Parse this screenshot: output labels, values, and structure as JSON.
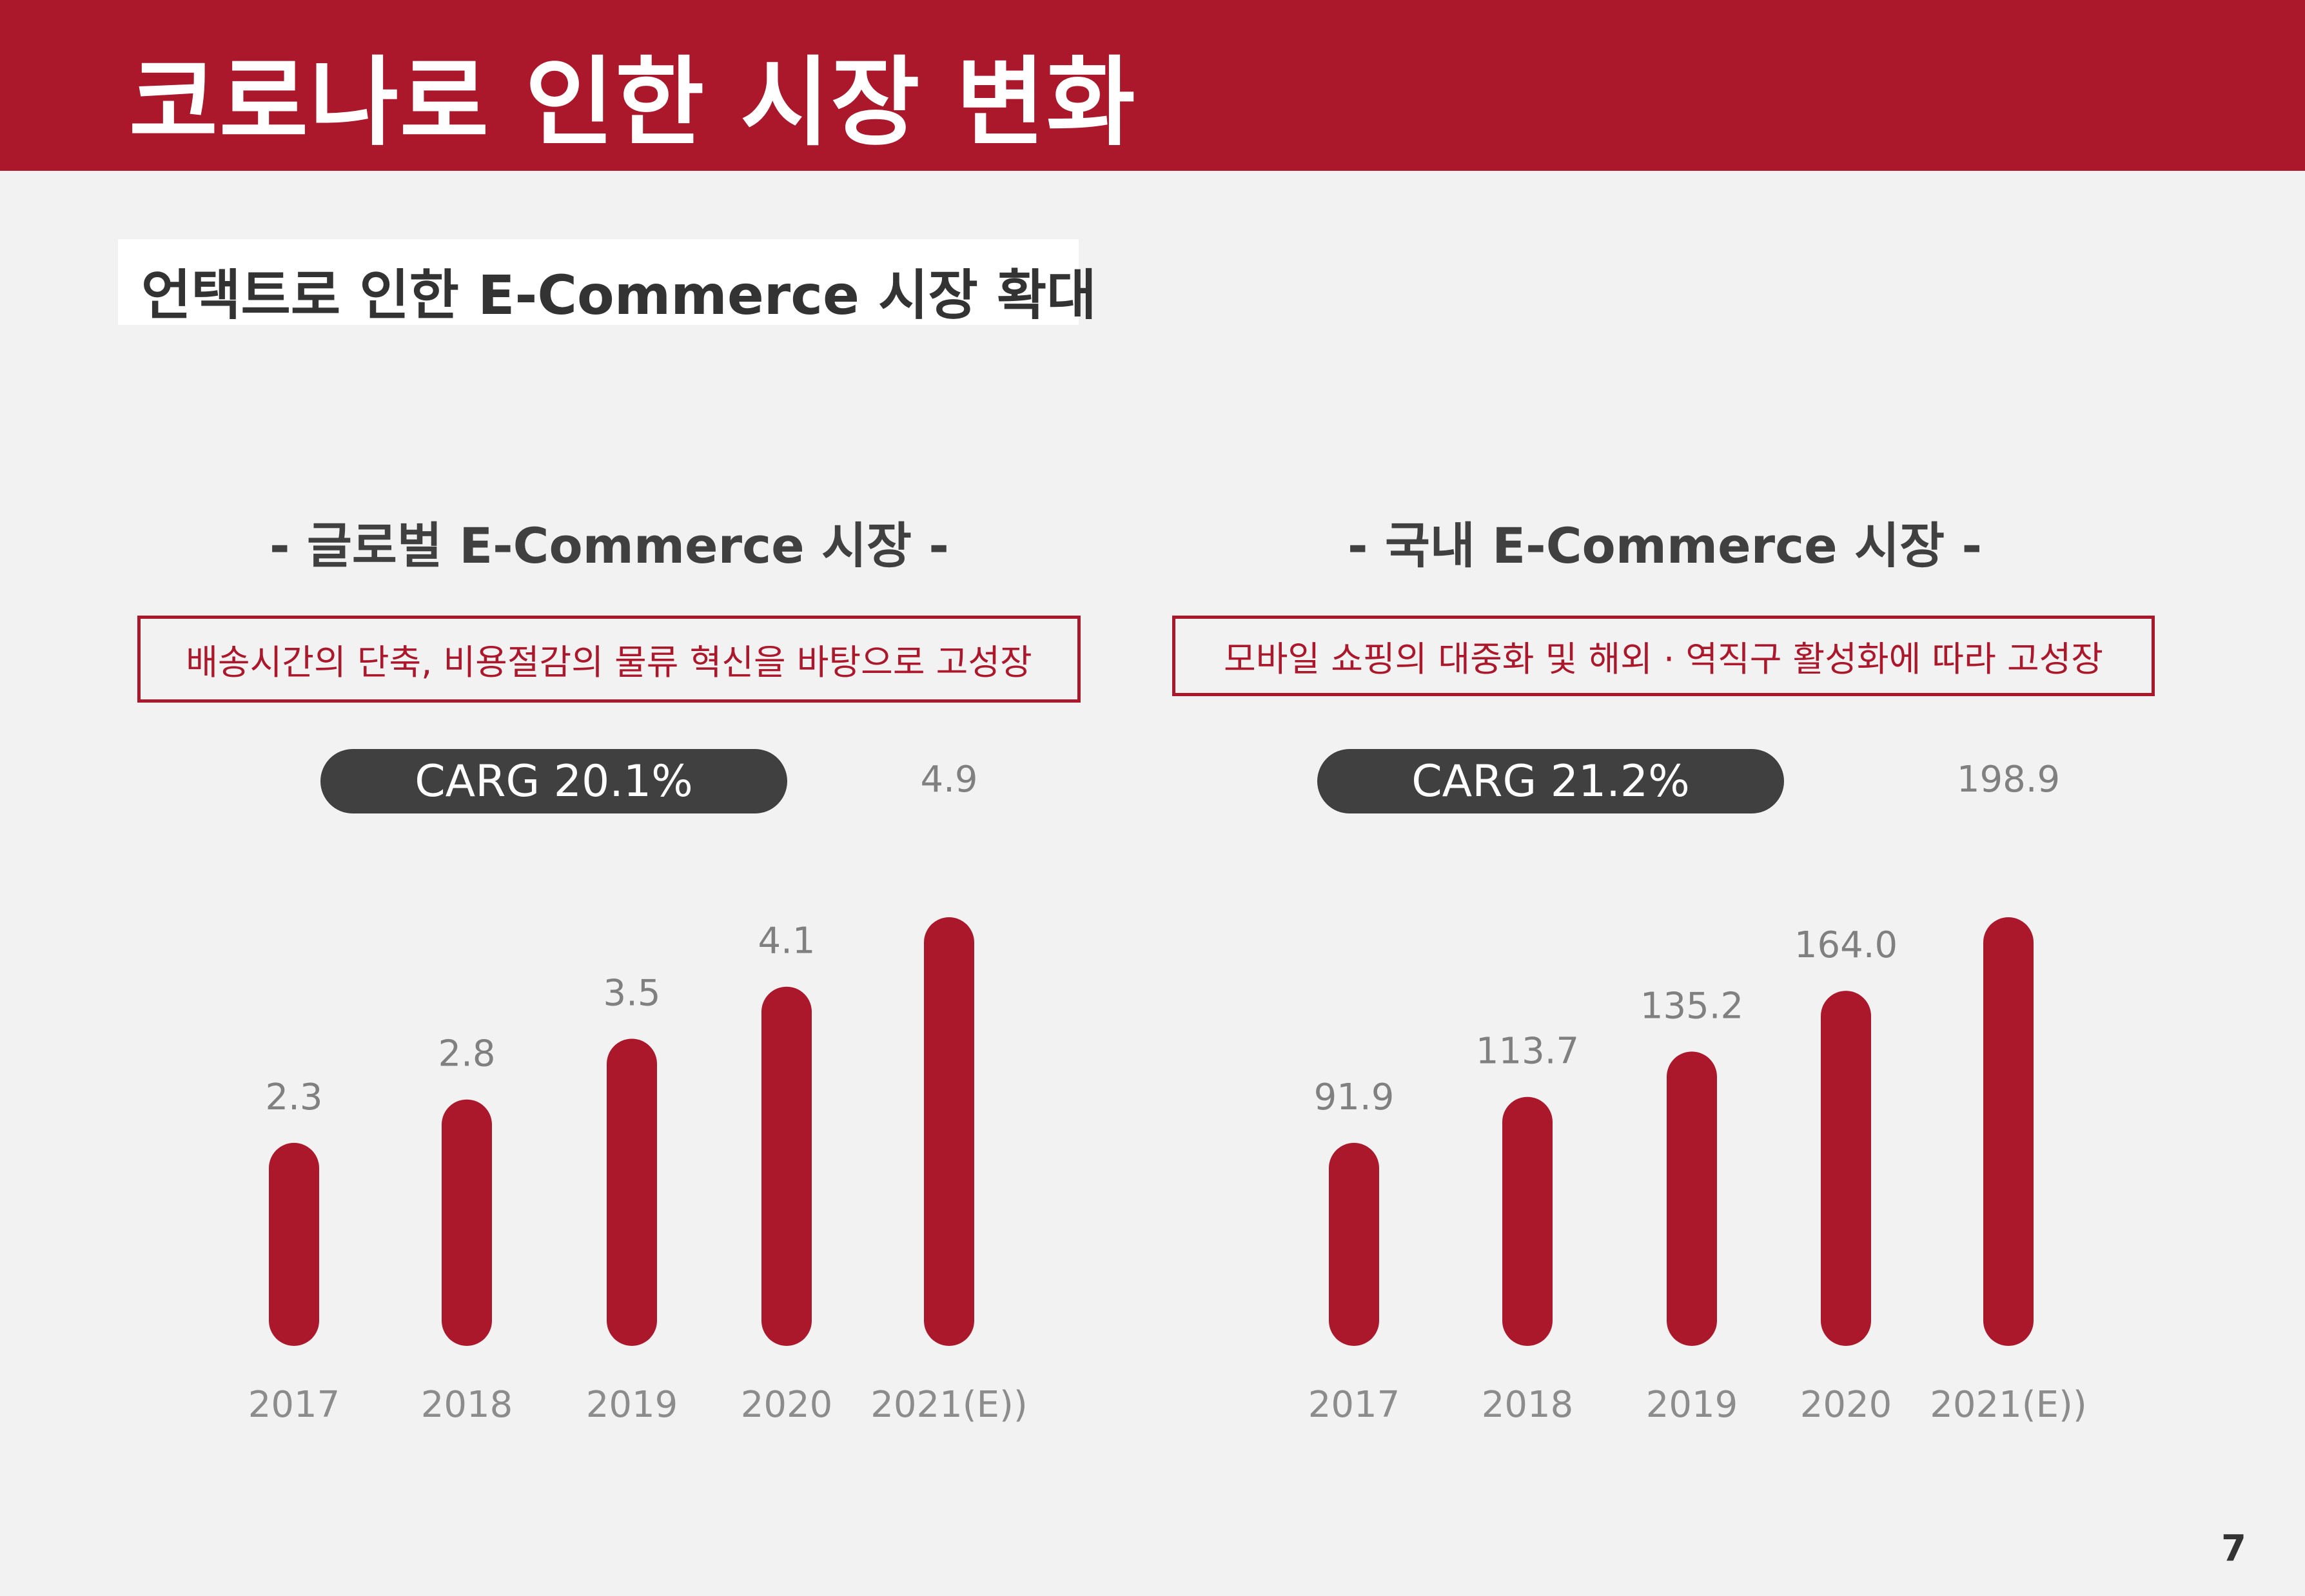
{
  "header": {
    "title": "코로나로 인한 시장 변화"
  },
  "subtitle": "언택트로 인한 E-Commerce 시장 확대",
  "page_number": "7",
  "colors": {
    "brand": "#ab182c",
    "pill": "#404040",
    "value_label": "#808080",
    "tick_label": "#8c8c8c",
    "background": "#f2f2f2"
  },
  "panels": [
    {
      "title": "- 글로벌 E-Commerce 시장 -",
      "note": "배송시간의 단축, 비용절감의 물류 혁신을 바탕으로 고성장",
      "carg": "CARG 20.1%"
    },
    {
      "title": "- 국내 E-Commerce 시장 -",
      "note": "모바일 쇼핑의 대중화 및 해외 · 역직구 활성화에 따라 고성장",
      "carg": "CARG 21.2%"
    }
  ],
  "chart_data": [
    {
      "type": "bar",
      "categories": [
        "2017",
        "2018",
        "2019",
        "2020",
        "2021(E))"
      ],
      "values": [
        2.3,
        2.8,
        3.5,
        4.1,
        4.9
      ],
      "value_labels": [
        "2.3",
        "2.8",
        "3.5",
        "4.1",
        "4.9"
      ],
      "title": "- 글로벌 E-Commerce 시장 -",
      "xlabel": "",
      "ylabel": ""
    },
    {
      "type": "bar",
      "categories": [
        "2017",
        "2018",
        "2019",
        "2020",
        "2021(E))"
      ],
      "values": [
        91.9,
        113.7,
        135.2,
        164.0,
        198.9
      ],
      "value_labels": [
        "91.9",
        "113.7",
        "135.2",
        "164.0",
        "198.9"
      ],
      "title": "- 국내 E-Commerce 시장 -",
      "xlabel": "",
      "ylabel": ""
    }
  ]
}
